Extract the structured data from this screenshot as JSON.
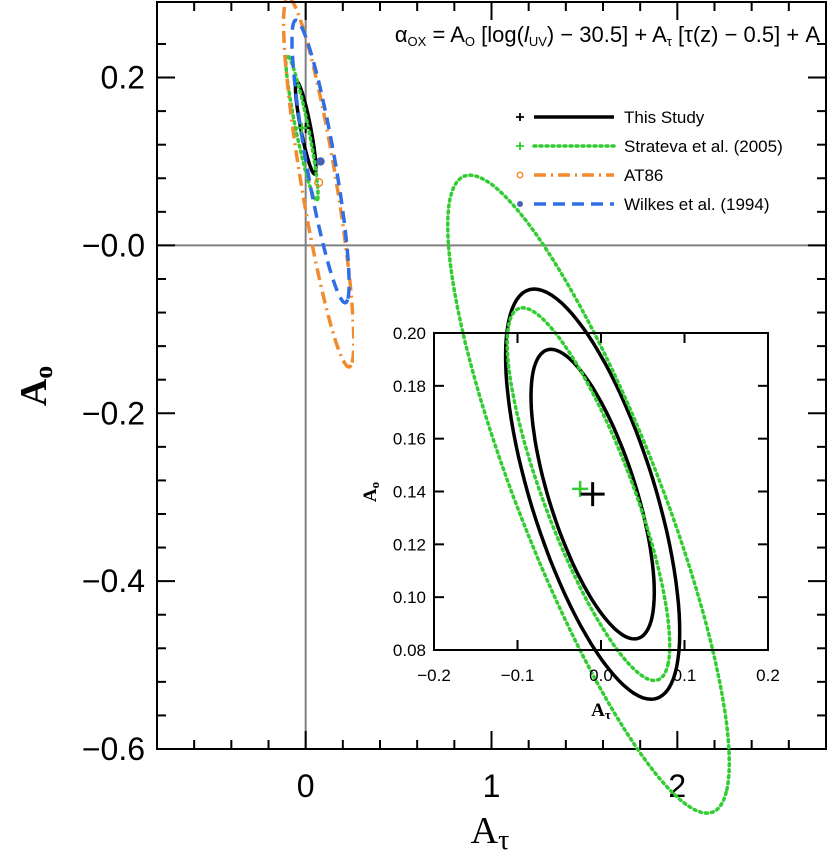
{
  "chart_data": [
    {
      "type": "scatter",
      "role": "main",
      "title": "",
      "equation": {
        "alpha": "α",
        "alpha_sub": "OX",
        "part1": " = A",
        "sub_o": "O",
        "part2": " [log(",
        "l": "l",
        "sub_uv": "UV",
        "part3": ") − 30.5] + A",
        "sub_tau": "τ",
        "part4": " [τ(z) − 0.5] + A"
      },
      "xlabel": {
        "main": "A",
        "sub": "τ"
      },
      "ylabel": {
        "main": "A",
        "sub": "o"
      },
      "xlim": [
        -0.8,
        2.8
      ],
      "ylim": [
        -0.6,
        0.29
      ],
      "xticks": [
        0,
        1,
        2
      ],
      "xtick_labels": [
        "0",
        "1",
        "2"
      ],
      "yticks": [
        0.2,
        0.0,
        -0.2,
        -0.4,
        -0.6
      ],
      "ytick_labels": [
        "0.2",
        "−0.0",
        "−0.2",
        "−0.4",
        "−0.6"
      ],
      "reference_lines": {
        "x": 0,
        "y": 0
      },
      "series": [
        {
          "name": "This Study",
          "color": "#000000",
          "style": "solid",
          "marker": "+",
          "point": {
            "x": 0.0,
            "y": 0.14
          },
          "contours": [
            {
              "angle_deg": -45,
              "sa": 0.075,
              "sb": 0.02
            }
          ]
        },
        {
          "name": "Strateva et al. (2005)",
          "color": "#33cc33",
          "style": "dotted",
          "marker": "+",
          "point": {
            "x": -0.02,
            "y": 0.14
          },
          "contours": [
            {
              "angle_deg": -45,
              "sa": 0.12,
              "sb": 0.025
            }
          ]
        },
        {
          "name": "AT86",
          "color": "#f28a2e",
          "style": "dashdot",
          "marker": "open-circle",
          "point": {
            "x": 0.07,
            "y": 0.075
          },
          "contours": [
            {
              "angle_deg": -50,
              "sa": 0.28,
              "sb": 0.075
            }
          ]
        },
        {
          "name": "Wilkes et al. (1994)",
          "color": "#2f6ee6",
          "style": "dashed",
          "marker": "filled-circle",
          "marker_color": "#4a60b8",
          "point": {
            "x": 0.08,
            "y": 0.1
          },
          "contours": [
            {
              "angle_deg": -48,
              "sa": 0.22,
              "sb": 0.06
            }
          ]
        }
      ]
    },
    {
      "type": "scatter",
      "role": "inset",
      "xlabel": {
        "main": "A",
        "sub": "τ"
      },
      "ylabel": {
        "main": "A",
        "sub": "o"
      },
      "xlim": [
        -0.2,
        0.2
      ],
      "ylim": [
        0.08,
        0.2
      ],
      "xticks": [
        -0.2,
        -0.1,
        0.0,
        0.1,
        0.2
      ],
      "xtick_labels": [
        "−0.2",
        "−0.1",
        "0.0",
        "0.1",
        "0.2"
      ],
      "yticks": [
        0.08,
        0.1,
        0.12,
        0.14,
        0.16,
        0.18,
        0.2
      ],
      "ytick_labels": [
        "0.08",
        "0.10",
        "0.12",
        "0.14",
        "0.16",
        "0.18",
        "0.20"
      ],
      "series": [
        {
          "name": "This Study",
          "color": "#000000",
          "style": "solid",
          "marker": "+",
          "point": {
            "x": -0.01,
            "y": 0.139
          },
          "contours": [
            {
              "center": [
                -0.01,
                0.139
              ],
              "angle_deg": -33,
              "sa": 0.085,
              "sb": 0.035
            },
            {
              "center": [
                -0.01,
                0.139
              ],
              "angle_deg": -33,
              "sa": 0.12,
              "sb": 0.05
            }
          ]
        },
        {
          "name": "Strateva et al. (2005)",
          "color": "#33cc33",
          "style": "dotted",
          "marker": "+",
          "point": {
            "x": -0.025,
            "y": 0.141
          },
          "contours": [
            {
              "center": [
                -0.015,
                0.139
              ],
              "angle_deg": -34,
              "sa": 0.115,
              "sb": 0.035
            },
            {
              "center": [
                -0.015,
                0.139
              ],
              "angle_deg": -34,
              "sa": 0.2,
              "sb": 0.055
            }
          ]
        }
      ]
    }
  ]
}
